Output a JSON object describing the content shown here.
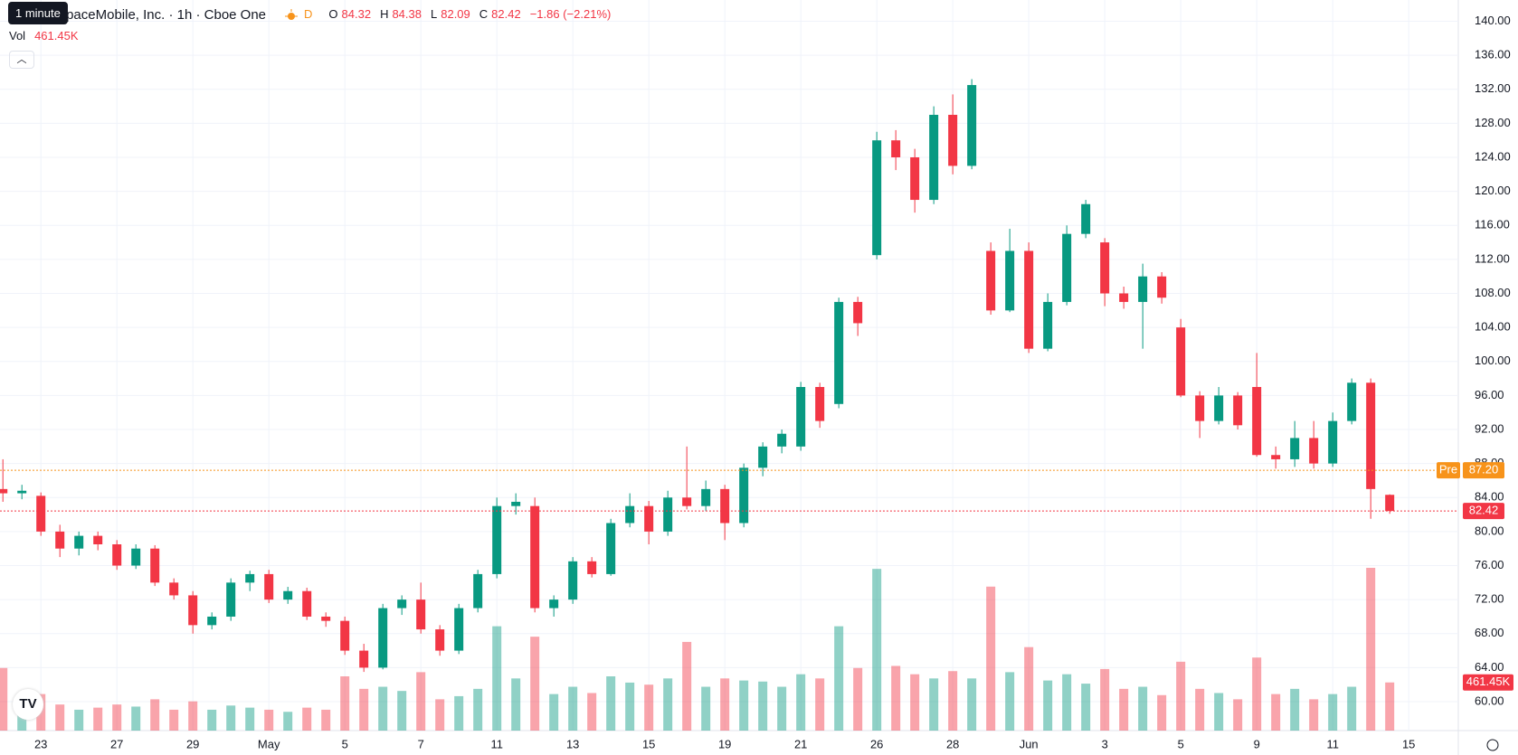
{
  "chart_data": {
    "type": "candlestick",
    "tooltip": "1 minute",
    "title": "AST SpaceMobile, Inc. · 1h · Cboe One",
    "session_badge": "D",
    "ohlc_labels": [
      "O",
      "H",
      "L",
      "C"
    ],
    "change": "−1.86 (−2.21%)",
    "up_color": "#089981",
    "down_color": "#f23645",
    "categories": [
      null,
      null,
      "23",
      null,
      null,
      null,
      "27",
      null,
      null,
      null,
      "29",
      null,
      null,
      null,
      "May",
      null,
      null,
      null,
      "5",
      null,
      null,
      null,
      "7",
      null,
      null,
      null,
      "11",
      null,
      null,
      null,
      "13",
      null,
      null,
      null,
      "15",
      null,
      null,
      null,
      "19",
      null,
      null,
      null,
      "21",
      null,
      null,
      null,
      "26",
      null,
      null,
      null,
      "28",
      null,
      null,
      null,
      "Jun",
      null,
      null,
      null,
      "3",
      null,
      null,
      null,
      "5",
      null,
      null,
      null,
      "9",
      null,
      null,
      null,
      "11",
      null,
      null,
      null,
      "15"
    ],
    "open": [
      85,
      84.5,
      84.2,
      80,
      78,
      79.5,
      78.5,
      76,
      78,
      74,
      72.5,
      69,
      70,
      74,
      75,
      72,
      73,
      70,
      69.5,
      66,
      64,
      71,
      72,
      68.5,
      66,
      71,
      75,
      83,
      83,
      71,
      72,
      76.5,
      75,
      81,
      83,
      80,
      84,
      83,
      85,
      81,
      87.5,
      90,
      90,
      97,
      95,
      107,
      112.5,
      126,
      124,
      119,
      129,
      123,
      113,
      106,
      113,
      101.5,
      107,
      115,
      114,
      108,
      107,
      110,
      104,
      96,
      93,
      96,
      97,
      89,
      88.5,
      91,
      88,
      93,
      97.5,
      84.32,
      null
    ],
    "high": [
      88.5,
      85.5,
      84.6,
      80.8,
      80,
      80,
      79,
      78.5,
      78.4,
      74.5,
      73,
      70.5,
      74.5,
      75.4,
      75.5,
      73.5,
      73.4,
      70.5,
      70,
      66.8,
      71.5,
      72.5,
      74,
      69,
      71.5,
      75.5,
      84,
      84.5,
      84,
      72.5,
      77,
      77,
      81.5,
      84.5,
      83.6,
      84.8,
      90,
      86,
      85.5,
      88,
      90.5,
      92,
      97.6,
      97.5,
      107.5,
      107.6,
      127,
      127.2,
      125,
      130,
      131.4,
      133.2,
      114,
      115.6,
      114,
      108,
      116,
      119,
      114.5,
      108.8,
      111.5,
      110.5,
      105,
      96.5,
      97,
      96.4,
      101,
      90,
      93,
      93,
      94,
      98,
      98,
      84.38,
      null
    ],
    "low": [
      83.5,
      83.8,
      79.5,
      77,
      77.2,
      77.8,
      75.5,
      75.6,
      73.6,
      72,
      68,
      68.5,
      69.5,
      73,
      71.6,
      71.5,
      69.6,
      68.8,
      65.5,
      63.5,
      63.8,
      70.2,
      68,
      65.4,
      65.6,
      70.5,
      74.5,
      82,
      70.5,
      70,
      71.5,
      74.6,
      74.8,
      80.5,
      78.5,
      79.5,
      82.6,
      82.4,
      79,
      80.5,
      86.5,
      89.2,
      89.5,
      92.2,
      94.5,
      103,
      112,
      122.5,
      117.5,
      118.5,
      122,
      122.6,
      105.5,
      105.8,
      101,
      101.2,
      106.6,
      114.5,
      106.5,
      106.2,
      101.5,
      106.8,
      95.8,
      91,
      92.6,
      92,
      88.8,
      87.4,
      87.6,
      87.4,
      87.6,
      92.6,
      81.5,
      82.09,
      null
    ],
    "close": [
      84.5,
      84.8,
      80,
      78,
      79.5,
      78.5,
      76,
      78,
      74,
      72.5,
      69,
      70,
      74,
      75,
      72,
      73,
      70,
      69.5,
      66,
      64,
      71,
      72,
      68.5,
      66,
      71,
      75,
      83,
      83.5,
      71,
      72,
      76.5,
      75,
      81,
      83,
      80,
      84,
      83,
      85,
      81,
      87.5,
      90,
      91.5,
      97,
      93,
      107,
      104.5,
      126,
      124,
      119,
      129,
      123,
      132.5,
      106,
      113,
      101.5,
      107,
      115,
      118.5,
      108,
      107,
      110,
      107.5,
      96,
      93,
      96,
      92.5,
      89,
      88.5,
      91,
      88,
      93,
      97.5,
      85,
      82.42,
      null
    ],
    "volume": {
      "name": "Vol",
      "values": [
        600000,
        300000,
        350000,
        250000,
        200000,
        220000,
        250000,
        230000,
        300000,
        200000,
        280000,
        200000,
        240000,
        220000,
        200000,
        180000,
        220000,
        200000,
        520000,
        400000,
        420000,
        380000,
        560000,
        300000,
        330000,
        400000,
        1000000,
        500000,
        900000,
        350000,
        420000,
        360000,
        520000,
        460000,
        440000,
        500000,
        850000,
        420000,
        500000,
        480000,
        470000,
        420000,
        540000,
        500000,
        1000000,
        600000,
        1550000,
        620000,
        540000,
        500000,
        570000,
        500000,
        1380000,
        560000,
        800000,
        480000,
        540000,
        450000,
        590000,
        400000,
        420000,
        340000,
        660000,
        400000,
        360000,
        300000,
        700000,
        350000,
        400000,
        300000,
        350000,
        420000,
        1560000,
        461450,
        null
      ],
      "value_labels": [
        null,
        null,
        null,
        null,
        null,
        null,
        null,
        null,
        null,
        null,
        null,
        null,
        null,
        null,
        null,
        null,
        null,
        null,
        null,
        null,
        null,
        null,
        null,
        null,
        null,
        null,
        null,
        null,
        null,
        null,
        null,
        null,
        null,
        null,
        null,
        null,
        null,
        null,
        null,
        null,
        null,
        null,
        null,
        null,
        null,
        null,
        null,
        null,
        null,
        null,
        null,
        null,
        null,
        null,
        null,
        null,
        null,
        null,
        null,
        null,
        null,
        null,
        null,
        null,
        null,
        null,
        null,
        null,
        null,
        null,
        null,
        null,
        null,
        "461.45K",
        null
      ]
    },
    "premarket": {
      "name": "Pre",
      "value": 87.2,
      "label": "87.20",
      "color": "#f7931a"
    },
    "ylim": [
      56.6,
      142.5
    ],
    "yticks": [
      {
        "value": 60,
        "label": "60.00"
      },
      {
        "value": 64,
        "label": "64.00"
      },
      {
        "value": 68,
        "label": "68.00"
      },
      {
        "value": 72,
        "label": "72.00"
      },
      {
        "value": 76,
        "label": "76.00"
      },
      {
        "value": 80,
        "label": "80.00"
      },
      {
        "value": 84,
        "label": "84.00"
      },
      {
        "value": 88,
        "label": "88.00"
      },
      {
        "value": 92,
        "label": "92.00"
      },
      {
        "value": 96,
        "label": "96.00"
      },
      {
        "value": 100,
        "label": "100.00"
      },
      {
        "value": 104,
        "label": "104.00"
      },
      {
        "value": 108,
        "label": "108.00"
      },
      {
        "value": 112,
        "label": "112.00"
      },
      {
        "value": 116,
        "label": "116.00"
      },
      {
        "value": 120,
        "label": "120.00"
      },
      {
        "value": 124,
        "label": "124.00"
      },
      {
        "value": 128,
        "label": "128.00"
      },
      {
        "value": 132,
        "label": "132.00"
      },
      {
        "value": 136,
        "label": "136.00"
      },
      {
        "value": 140,
        "label": "140.00"
      }
    ],
    "grid": true
  }
}
